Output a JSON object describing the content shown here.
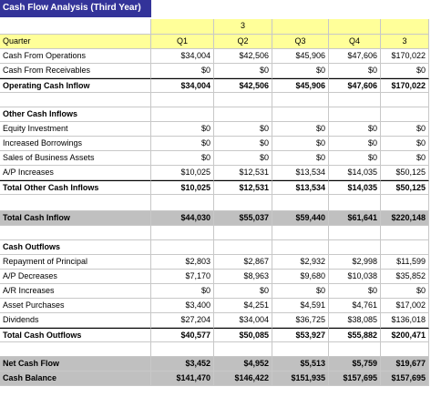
{
  "title": "Cash Flow Analysis (Third Year)",
  "top_label": "3",
  "columns": [
    "Quarter",
    "Q1",
    "Q2",
    "Q3",
    "Q4",
    "3"
  ],
  "sections": [
    {
      "rows": [
        {
          "label": "Cash From Operations",
          "values": [
            "$34,004",
            "$42,506",
            "$45,906",
            "$47,606",
            "$170,022"
          ]
        },
        {
          "label": "Cash From Receivables",
          "values": [
            "$0",
            "$0",
            "$0",
            "$0",
            "$0"
          ]
        }
      ],
      "total": {
        "label": "Operating Cash Inflow",
        "values": [
          "$34,004",
          "$42,506",
          "$45,906",
          "$47,606",
          "$170,022"
        ]
      }
    },
    {
      "heading": "Other Cash Inflows",
      "rows": [
        {
          "label": "Equity Investment",
          "values": [
            "$0",
            "$0",
            "$0",
            "$0",
            "$0"
          ]
        },
        {
          "label": "Increased Borrowings",
          "values": [
            "$0",
            "$0",
            "$0",
            "$0",
            "$0"
          ]
        },
        {
          "label": "Sales of Business Assets",
          "values": [
            "$0",
            "$0",
            "$0",
            "$0",
            "$0"
          ]
        },
        {
          "label": "A/P Increases",
          "values": [
            "$10,025",
            "$12,531",
            "$13,534",
            "$14,035",
            "$50,125"
          ]
        }
      ],
      "total": {
        "label": "Total Other Cash Inflows",
        "values": [
          "$10,025",
          "$12,531",
          "$13,534",
          "$14,035",
          "$50,125"
        ]
      }
    },
    {
      "highlight": true,
      "rows": [
        {
          "label": "Total Cash Inflow",
          "values": [
            "$44,030",
            "$55,037",
            "$59,440",
            "$61,641",
            "$220,148"
          ]
        }
      ]
    },
    {
      "heading": "Cash Outflows",
      "rows": [
        {
          "label": "Repayment of Principal",
          "values": [
            "$2,803",
            "$2,867",
            "$2,932",
            "$2,998",
            "$11,599"
          ]
        },
        {
          "label": "A/P Decreases",
          "values": [
            "$7,170",
            "$8,963",
            "$9,680",
            "$10,038",
            "$35,852"
          ]
        },
        {
          "label": "A/R Increases",
          "values": [
            "$0",
            "$0",
            "$0",
            "$0",
            "$0"
          ]
        },
        {
          "label": "Asset Purchases",
          "values": [
            "$3,400",
            "$4,251",
            "$4,591",
            "$4,761",
            "$17,002"
          ]
        },
        {
          "label": "Dividends",
          "values": [
            "$27,204",
            "$34,004",
            "$36,725",
            "$38,085",
            "$136,018"
          ]
        }
      ],
      "total": {
        "label": "Total Cash Outflows",
        "values": [
          "$40,577",
          "$50,085",
          "$53,927",
          "$55,882",
          "$200,471"
        ]
      }
    },
    {
      "highlight": true,
      "rows": [
        {
          "label": "Net Cash Flow",
          "values": [
            "$3,452",
            "$4,952",
            "$5,513",
            "$5,759",
            "$19,677"
          ]
        },
        {
          "label": "Cash Balance",
          "values": [
            "$141,470",
            "$146,422",
            "$151,935",
            "$157,695",
            "$157,695"
          ]
        }
      ]
    }
  ]
}
